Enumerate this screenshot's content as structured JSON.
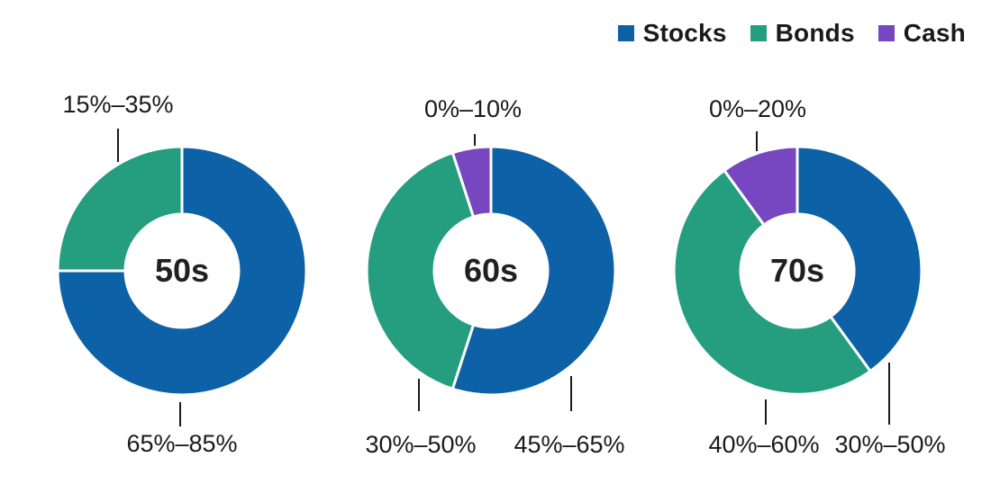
{
  "colors": {
    "stocks": "#0d61a6",
    "bonds": "#249e7f",
    "cash": "#7647c0",
    "text": "#1a1a1a",
    "background": "#ffffff"
  },
  "legend": {
    "items": [
      {
        "label": "Stocks",
        "color_key": "stocks"
      },
      {
        "label": "Bonds",
        "color_key": "bonds"
      },
      {
        "label": "Cash",
        "color_key": "cash"
      }
    ],
    "position": "top-right"
  },
  "chart_data": [
    {
      "type": "pie",
      "style": "donut",
      "center_label": "50s",
      "series": [
        {
          "name": "Stocks",
          "value": 75,
          "range_label": "65%–85%"
        },
        {
          "name": "Bonds",
          "value": 25,
          "range_label": "15%–35%"
        }
      ]
    },
    {
      "type": "pie",
      "style": "donut",
      "center_label": "60s",
      "series": [
        {
          "name": "Stocks",
          "value": 55,
          "range_label": "45%–65%"
        },
        {
          "name": "Bonds",
          "value": 40,
          "range_label": "30%–50%"
        },
        {
          "name": "Cash",
          "value": 5,
          "range_label": "0%–10%"
        }
      ]
    },
    {
      "type": "pie",
      "style": "donut",
      "center_label": "70s",
      "series": [
        {
          "name": "Stocks",
          "value": 40,
          "range_label": "30%–50%"
        },
        {
          "name": "Bonds",
          "value": 50,
          "range_label": "40%–60%"
        },
        {
          "name": "Cash",
          "value": 10,
          "range_label": "0%–20%"
        }
      ]
    }
  ]
}
